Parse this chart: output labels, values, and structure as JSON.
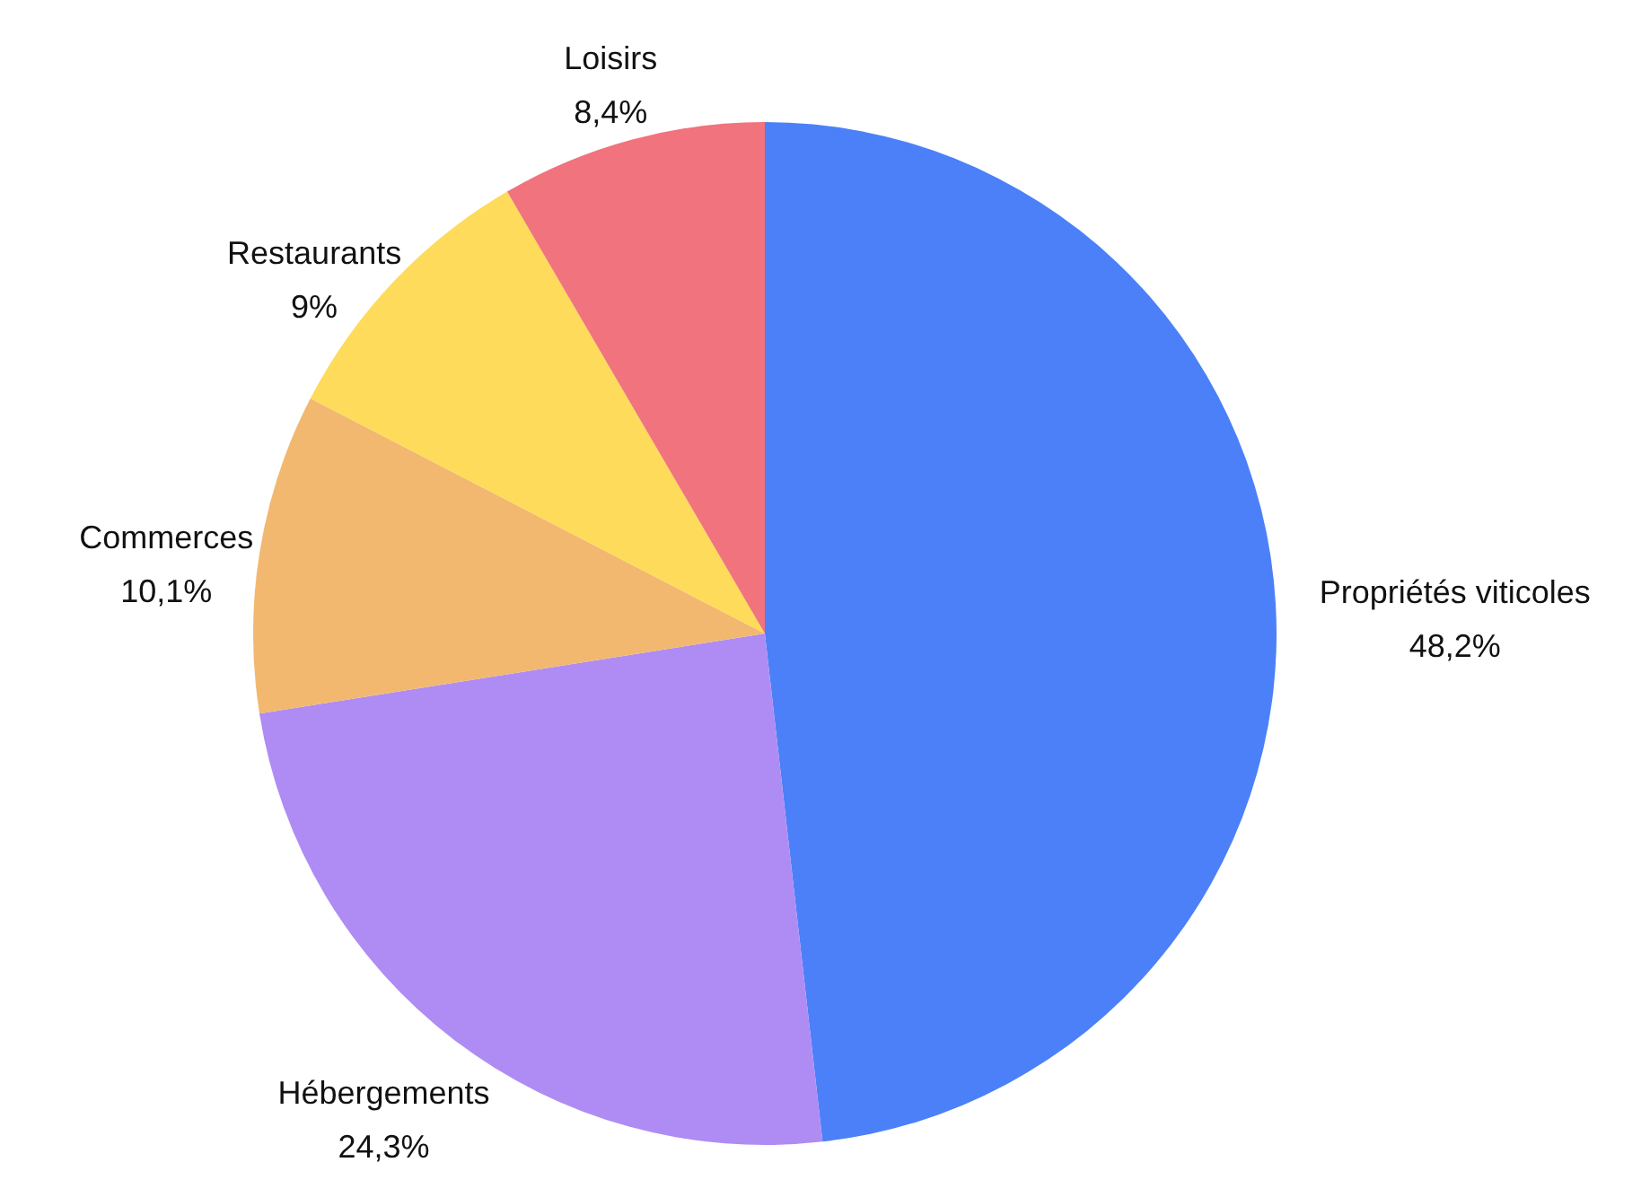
{
  "chart_data": {
    "type": "pie",
    "categories": [
      "Propriétés viticoles",
      "Hébergements",
      "Commerces",
      "Restaurants",
      "Loisirs"
    ],
    "values": [
      48.2,
      24.3,
      10.1,
      9,
      8.4
    ],
    "value_labels": [
      "48,2%",
      "24,3%",
      "10,1%",
      "9%",
      "8,4%"
    ],
    "colors": [
      "#4b80f8",
      "#ae8cf4",
      "#f2b870",
      "#fedb5a",
      "#f0737d"
    ]
  }
}
